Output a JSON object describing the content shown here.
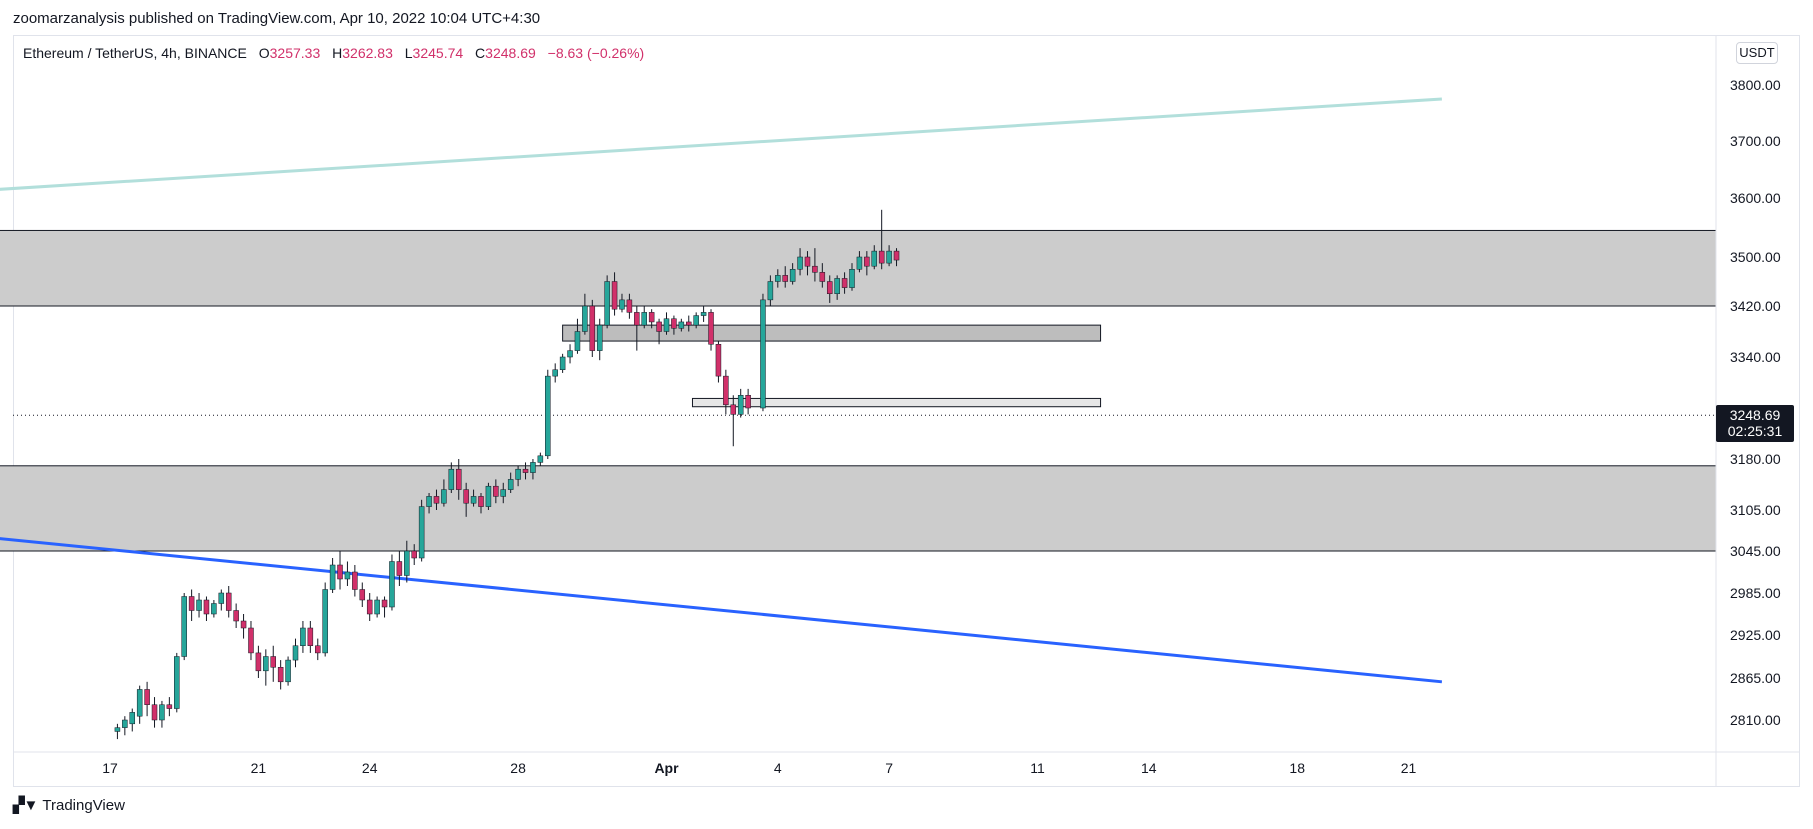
{
  "header": {
    "published_by": "zoomarzanalysis published on TradingView.com, Apr 10, 2022 10:04 UTC+4:30"
  },
  "legend": {
    "symbol": "Ethereum / TetherUS, 4h, BINANCE",
    "open_label": "O",
    "open": "3257.33",
    "high_label": "H",
    "high": "3262.83",
    "low_label": "L",
    "low": "3245.74",
    "close_label": "C",
    "close": "3248.69",
    "change": "−8.63 (−0.26%)"
  },
  "price_axis": {
    "unit": "USDT"
  },
  "last_price": {
    "value": "3248.69",
    "countdown": "02:25:31"
  },
  "footer": {
    "brand": "TradingView",
    "logo_icon": "tradingview-logo-icon"
  },
  "colors": {
    "up": "#26a69a",
    "down": "#d1306a",
    "channel_top": "#b2dfdb",
    "channel_bottom": "#2962ff",
    "zone": "#cccccc"
  },
  "chart_data": {
    "type": "candlestick",
    "instrument": "Ethereum / TetherUS",
    "timeframe": "4h",
    "exchange": "BINANCE",
    "y_ticks": [
      3800,
      3700,
      3600,
      3500,
      3420,
      3340,
      3180,
      3105,
      3045,
      2985,
      2925,
      2865,
      2810
    ],
    "x_ticks": [
      {
        "label": "17",
        "day": 17
      },
      {
        "label": "21",
        "day": 21
      },
      {
        "label": "24",
        "day": 24
      },
      {
        "label": "28",
        "day": 28
      },
      {
        "label": "Apr",
        "day": 32
      },
      {
        "label": "4",
        "day": 35
      },
      {
        "label": "7",
        "day": 38
      },
      {
        "label": "11",
        "day": 42
      },
      {
        "label": "14",
        "day": 45
      },
      {
        "label": "18",
        "day": 49
      },
      {
        "label": "21",
        "day": 52
      }
    ],
    "zones": [
      {
        "name": "upper-resistance-zone",
        "from": 3420,
        "to": 3545,
        "x_start": 12.75,
        "x_end": null
      },
      {
        "name": "lower-support-zone",
        "from": 3045,
        "to": 3170,
        "x_start": 12.75,
        "x_end": null
      },
      {
        "name": "mid-resistance-box",
        "from": 3365,
        "to": 3390,
        "x_start": 29.2,
        "x_end": 43.7
      },
      {
        "name": "mid-support-box",
        "from": 3262,
        "to": 3275,
        "x_start": 32.7,
        "x_end": 43.7
      }
    ],
    "trendlines": [
      {
        "name": "channel-top-line",
        "x1": 12.75,
        "y1": 3610,
        "x2": 52.9,
        "y2": 3775
      },
      {
        "name": "channel-bottom-line",
        "x1": 12.75,
        "y1": 3070,
        "x2": 52.9,
        "y2": 2860
      }
    ],
    "last_price": 3248.69,
    "candles": [
      [
        17.2,
        2795,
        2800,
        2785,
        2805
      ],
      [
        17.4,
        2800,
        2810,
        2790,
        2815
      ],
      [
        17.6,
        2805,
        2820,
        2795,
        2825
      ],
      [
        17.8,
        2815,
        2850,
        2805,
        2855
      ],
      [
        18.0,
        2850,
        2830,
        2815,
        2860
      ],
      [
        18.2,
        2830,
        2810,
        2800,
        2840
      ],
      [
        18.4,
        2810,
        2830,
        2800,
        2835
      ],
      [
        18.6,
        2830,
        2825,
        2815,
        2840
      ],
      [
        18.8,
        2825,
        2895,
        2820,
        2900
      ],
      [
        19.0,
        2895,
        2980,
        2890,
        2985
      ],
      [
        19.2,
        2980,
        2960,
        2945,
        2990
      ],
      [
        19.4,
        2960,
        2975,
        2950,
        2985
      ],
      [
        19.6,
        2975,
        2955,
        2945,
        2980
      ],
      [
        19.8,
        2955,
        2970,
        2950,
        2975
      ],
      [
        20.0,
        2970,
        2985,
        2960,
        2990
      ],
      [
        20.2,
        2985,
        2960,
        2950,
        2995
      ],
      [
        20.4,
        2960,
        2945,
        2935,
        2970
      ],
      [
        20.6,
        2945,
        2935,
        2920,
        2955
      ],
      [
        20.8,
        2935,
        2900,
        2890,
        2945
      ],
      [
        21.0,
        2900,
        2875,
        2865,
        2910
      ],
      [
        21.2,
        2875,
        2895,
        2855,
        2905
      ],
      [
        21.4,
        2895,
        2880,
        2860,
        2910
      ],
      [
        21.6,
        2880,
        2860,
        2850,
        2890
      ],
      [
        21.8,
        2860,
        2890,
        2855,
        2895
      ],
      [
        22.0,
        2890,
        2910,
        2880,
        2920
      ],
      [
        22.2,
        2910,
        2935,
        2900,
        2945
      ],
      [
        22.4,
        2935,
        2910,
        2900,
        2945
      ],
      [
        22.6,
        2910,
        2900,
        2890,
        2920
      ],
      [
        22.8,
        2900,
        2990,
        2895,
        3000
      ],
      [
        23.0,
        2990,
        3025,
        2985,
        3035
      ],
      [
        23.2,
        3025,
        3005,
        2990,
        3045
      ],
      [
        23.4,
        3005,
        3015,
        2995,
        3030
      ],
      [
        23.6,
        3015,
        2990,
        2980,
        3025
      ],
      [
        23.8,
        2990,
        2975,
        2965,
        3000
      ],
      [
        24.0,
        2975,
        2955,
        2945,
        2985
      ],
      [
        24.2,
        2955,
        2975,
        2950,
        2980
      ],
      [
        24.4,
        2975,
        2965,
        2950,
        2980
      ],
      [
        24.6,
        2965,
        3030,
        2960,
        3040
      ],
      [
        24.8,
        3030,
        3010,
        2995,
        3045
      ],
      [
        25.0,
        3010,
        3045,
        3000,
        3060
      ],
      [
        25.2,
        3045,
        3035,
        3025,
        3055
      ],
      [
        25.4,
        3035,
        3110,
        3030,
        3120
      ],
      [
        25.6,
        3110,
        3125,
        3100,
        3130
      ],
      [
        25.8,
        3125,
        3115,
        3105,
        3135
      ],
      [
        26.0,
        3115,
        3135,
        3110,
        3150
      ],
      [
        26.2,
        3135,
        3165,
        3130,
        3175
      ],
      [
        26.4,
        3165,
        3135,
        3120,
        3180
      ],
      [
        26.6,
        3135,
        3115,
        3095,
        3145
      ],
      [
        26.8,
        3115,
        3125,
        3110,
        3135
      ],
      [
        27.0,
        3125,
        3110,
        3100,
        3130
      ],
      [
        27.2,
        3110,
        3140,
        3105,
        3145
      ],
      [
        27.4,
        3140,
        3125,
        3115,
        3150
      ],
      [
        27.6,
        3125,
        3135,
        3115,
        3145
      ],
      [
        27.8,
        3135,
        3150,
        3130,
        3160
      ],
      [
        28.0,
        3150,
        3165,
        3140,
        3170
      ],
      [
        28.2,
        3165,
        3160,
        3150,
        3175
      ],
      [
        28.4,
        3160,
        3175,
        3150,
        3180
      ],
      [
        28.6,
        3175,
        3185,
        3170,
        3190
      ],
      [
        28.8,
        3185,
        3310,
        3180,
        3320
      ],
      [
        29.0,
        3310,
        3320,
        3300,
        3330
      ],
      [
        29.2,
        3320,
        3340,
        3315,
        3345
      ],
      [
        29.4,
        3340,
        3350,
        3330,
        3360
      ],
      [
        29.6,
        3350,
        3380,
        3345,
        3400
      ],
      [
        29.8,
        3380,
        3420,
        3375,
        3440
      ],
      [
        30.0,
        3420,
        3350,
        3340,
        3430
      ],
      [
        30.2,
        3350,
        3390,
        3335,
        3400
      ],
      [
        30.4,
        3390,
        3460,
        3385,
        3470
      ],
      [
        30.6,
        3460,
        3415,
        3405,
        3475
      ],
      [
        30.8,
        3415,
        3430,
        3410,
        3440
      ],
      [
        31.0,
        3430,
        3410,
        3400,
        3440
      ],
      [
        31.2,
        3410,
        3390,
        3350,
        3420
      ],
      [
        31.4,
        3390,
        3410,
        3385,
        3420
      ],
      [
        31.6,
        3410,
        3395,
        3385,
        3415
      ],
      [
        31.8,
        3395,
        3380,
        3360,
        3400
      ],
      [
        32.0,
        3380,
        3400,
        3375,
        3410
      ],
      [
        32.2,
        3400,
        3385,
        3375,
        3405
      ],
      [
        32.4,
        3385,
        3395,
        3380,
        3400
      ],
      [
        32.6,
        3395,
        3390,
        3380,
        3405
      ],
      [
        32.8,
        3390,
        3405,
        3385,
        3410
      ],
      [
        33.0,
        3405,
        3410,
        3395,
        3420
      ],
      [
        33.2,
        3410,
        3360,
        3350,
        3415
      ],
      [
        33.4,
        3360,
        3310,
        3300,
        3365
      ],
      [
        33.6,
        3310,
        3265,
        3250,
        3320
      ],
      [
        33.8,
        3265,
        3250,
        3200,
        3280
      ],
      [
        34.0,
        3250,
        3280,
        3245,
        3290
      ],
      [
        34.2,
        3280,
        3260,
        3250,
        3290
      ],
      [
        34.6,
        3260,
        3430,
        3255,
        3440
      ],
      [
        34.8,
        3430,
        3460,
        3420,
        3470
      ],
      [
        35.0,
        3460,
        3470,
        3450,
        3480
      ],
      [
        35.2,
        3470,
        3460,
        3450,
        3485
      ],
      [
        35.4,
        3460,
        3480,
        3455,
        3490
      ],
      [
        35.6,
        3480,
        3500,
        3470,
        3515
      ],
      [
        35.8,
        3500,
        3485,
        3470,
        3510
      ],
      [
        36.0,
        3485,
        3475,
        3460,
        3515
      ],
      [
        36.2,
        3475,
        3460,
        3450,
        3490
      ],
      [
        36.4,
        3460,
        3440,
        3425,
        3470
      ],
      [
        36.6,
        3440,
        3465,
        3430,
        3470
      ],
      [
        36.8,
        3465,
        3450,
        3440,
        3475
      ],
      [
        37.0,
        3450,
        3480,
        3445,
        3490
      ],
      [
        37.2,
        3480,
        3500,
        3475,
        3510
      ],
      [
        37.4,
        3500,
        3485,
        3470,
        3510
      ],
      [
        37.6,
        3485,
        3510,
        3480,
        3520
      ],
      [
        37.8,
        3510,
        3490,
        3480,
        3580
      ],
      [
        38.0,
        3490,
        3510,
        3485,
        3520
      ],
      [
        38.2,
        3510,
        3495,
        3485,
        3515
      ]
    ]
  }
}
